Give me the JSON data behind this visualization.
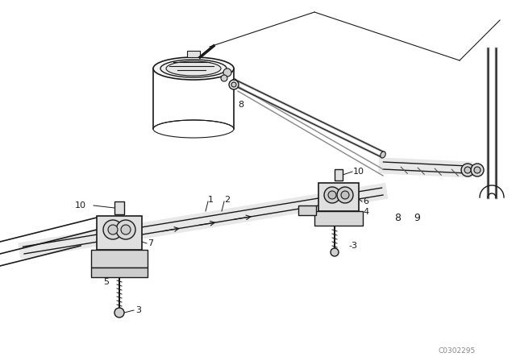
{
  "bg_color": "#ffffff",
  "line_color": "#1a1a1a",
  "fig_width": 6.4,
  "fig_height": 4.48,
  "dpi": 100,
  "watermark": "C0302295"
}
